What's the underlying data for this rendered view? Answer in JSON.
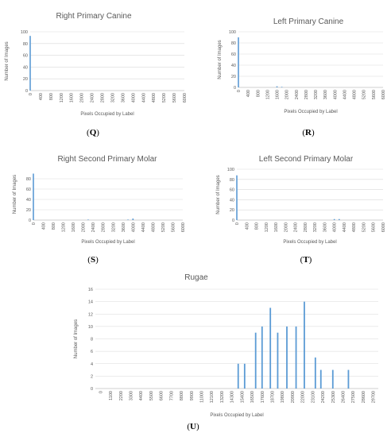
{
  "chart_data": [
    {
      "type": "bar",
      "title": "Right Primary Canine",
      "caption": "(Q)",
      "xlabel": "Pixels Occupied by Label",
      "ylabel": "Number of Images",
      "ylim": [
        0,
        100
      ],
      "y_ticks": [
        "0",
        "20",
        "40",
        "60",
        "80",
        "100"
      ],
      "x_ticks": [
        "0",
        "400",
        "800",
        "1200",
        "1600",
        "2000",
        "2400",
        "2800",
        "3200",
        "3600",
        "4000",
        "4400",
        "4800",
        "5200",
        "5600",
        "6000"
      ],
      "grid": true,
      "x": [
        0
      ],
      "values": [
        93
      ]
    },
    {
      "type": "bar",
      "title": "Left Primary Canine",
      "caption": "(R)",
      "xlabel": "Pixels Occupied by Label",
      "ylabel": "Number of Images",
      "ylim": [
        0,
        100
      ],
      "y_ticks": [
        "0",
        "20",
        "40",
        "60",
        "80",
        "100"
      ],
      "x_ticks": [
        "0",
        "400",
        "800",
        "1200",
        "1600",
        "2000",
        "2400",
        "2800",
        "3200",
        "3600",
        "4000",
        "4400",
        "4800",
        "5200",
        "5600",
        "6000"
      ],
      "grid": true,
      "x": [
        0,
        1600,
        1800
      ],
      "values": [
        90,
        2,
        1
      ]
    },
    {
      "type": "bar",
      "title": "Right Second Primary Molar",
      "caption": "(S)",
      "xlabel": "Pixels Occupied by Label",
      "ylabel": "Number of Images",
      "ylim": [
        0,
        100
      ],
      "y_ticks": [
        "0",
        "20",
        "40",
        "60",
        "80"
      ],
      "x_ticks": [
        "0",
        "400",
        "800",
        "1200",
        "1600",
        "2000",
        "2400",
        "2800",
        "3200",
        "3600",
        "4000",
        "4400",
        "4800",
        "5200",
        "5600",
        "6000"
      ],
      "grid": true,
      "x": [
        0,
        2200,
        3800,
        4000
      ],
      "values": [
        90,
        1,
        1,
        3
      ]
    },
    {
      "type": "bar",
      "title": "Left Second Primary Molar",
      "caption": "(T)",
      "xlabel": "Pixels Occupied by Label",
      "ylabel": "Number of Images",
      "ylim": [
        0,
        100
      ],
      "y_ticks": [
        "0",
        "20",
        "40",
        "60",
        "80",
        "100"
      ],
      "x_ticks": [
        "0",
        "400",
        "800",
        "1200",
        "1600",
        "2000",
        "2400",
        "2800",
        "3200",
        "3600",
        "4000",
        "4400",
        "4800",
        "5200",
        "5600",
        "6000"
      ],
      "grid": true,
      "x": [
        0,
        4000,
        4200
      ],
      "values": [
        88,
        2,
        2
      ]
    },
    {
      "type": "bar",
      "title": "Rugae",
      "caption": "(U)",
      "xlabel": "Pixels Occupied by Label",
      "ylabel": "Number of Images",
      "ylim": [
        0,
        16
      ],
      "y_ticks": [
        "0",
        "2",
        "4",
        "6",
        "8",
        "10",
        "12",
        "14",
        "16"
      ],
      "x_ticks": [
        "0",
        "1100",
        "2200",
        "3300",
        "4400",
        "5500",
        "6600",
        "7700",
        "8800",
        "9900",
        "11000",
        "12100",
        "13200",
        "14300",
        "15400",
        "16500",
        "17600",
        "18700",
        "19800",
        "20900",
        "22000",
        "23100",
        "24200",
        "25300",
        "26400",
        "27500",
        "28600",
        "29700"
      ],
      "grid": true,
      "x": [
        15000,
        15700,
        16900,
        17600,
        18500,
        19300,
        20300,
        21300,
        22200,
        23400,
        24000,
        25300,
        27000
      ],
      "values": [
        4,
        4,
        9,
        10,
        13,
        9,
        10,
        10,
        14,
        5,
        3,
        3,
        3
      ]
    }
  ],
  "colors": {
    "bar": "#5B9BD5",
    "grid": "#D9D9D9",
    "text": "#595959",
    "axis": "#BFBFBF"
  }
}
